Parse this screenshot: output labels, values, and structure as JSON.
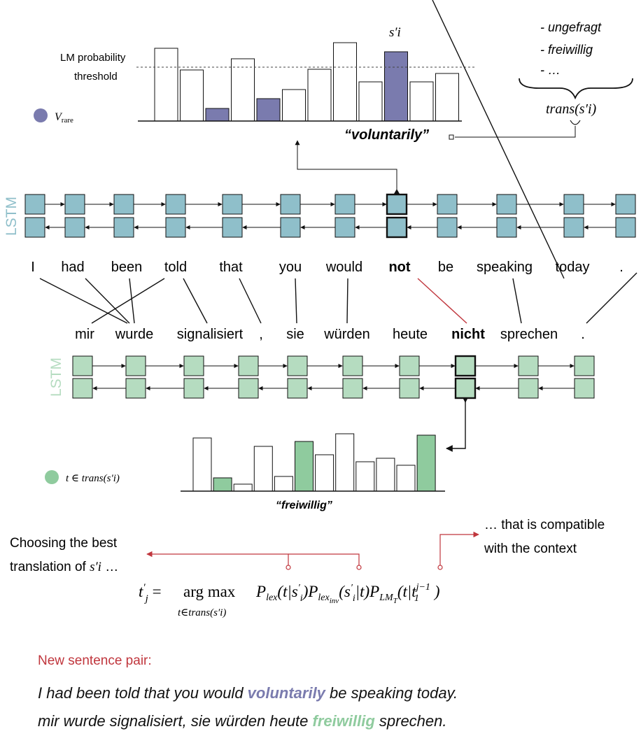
{
  "source_tokens": [
    "I",
    "had",
    "been",
    "told",
    "that",
    "you",
    "would",
    "not",
    "be",
    "speaking",
    "today",
    "."
  ],
  "target_tokens": [
    "mir",
    "wurde",
    "signalisiert",
    ",",
    "sie",
    "würden",
    "heute",
    "nicht",
    "sprechen",
    "."
  ],
  "alignments": [
    [
      0,
      1
    ],
    [
      1,
      1
    ],
    [
      2,
      1
    ],
    [
      3,
      0
    ],
    [
      3,
      2
    ],
    [
      4,
      3
    ],
    [
      5,
      4
    ],
    [
      6,
      5
    ],
    [
      9,
      8
    ],
    [
      10,
      6
    ],
    [
      11,
      9
    ]
  ],
  "substitution_alignment": [
    7,
    7
  ],
  "lstm_label": "LSTM",
  "colors": {
    "source_lstm": "#8fbfca",
    "target_lstm": "#b5dcc0",
    "rare_bar": "#7a7bae",
    "trans_bar": "#8fcb9e",
    "red": "#c0363d",
    "highlight_en": "#7a7bae",
    "highlight_de": "#8fcb9e"
  },
  "top_chart": {
    "threshold_label_line1": "LM probability",
    "threshold_label_line2": "threshold",
    "bar_label": "s′i",
    "word_label": "“voluntarily”",
    "legend_label": "V",
    "legend_subscript": "rare",
    "values": [
      104,
      73,
      18,
      89,
      32,
      45,
      74,
      112,
      56,
      99,
      56,
      68
    ],
    "filled": [
      2,
      4,
      9
    ],
    "selected": 9,
    "threshold": 78
  },
  "trans_list": {
    "items": [
      "- ungefragt",
      "- freiwillig",
      "- …"
    ],
    "label": "trans(s′i)"
  },
  "bottom_chart": {
    "values": [
      76,
      19,
      10,
      64,
      21,
      71,
      52,
      82,
      42,
      47,
      37,
      80
    ],
    "filled": [
      1,
      5,
      11
    ],
    "word_label": "“freiwillig”",
    "legend_label": "t ∈ trans(s′i)"
  },
  "annotations": {
    "choosing_line1": "Choosing the best",
    "choosing_line2": "translation of",
    "choosing_var": "s′i",
    "choosing_ellipsis": "…",
    "compatible_line1": "… that is compatible",
    "compatible_line2": "with the context"
  },
  "formula": {
    "lhs": "t′j = ",
    "argmax": "arg max",
    "argmax_sub": "t∈trans(s′i)",
    "terms": "Plex(t|s′i) Plexinv(s′i|t) PLMT(t|t1j−1)"
  },
  "new_pair": {
    "label": "New sentence pair:",
    "en_before": "I had been told that you would ",
    "en_highlight": "voluntarily",
    "en_after": " be speaking today.",
    "de_before": "mir wurde signalisiert, sie würden heute ",
    "de_highlight": "freiwillig",
    "de_after": " sprechen."
  }
}
